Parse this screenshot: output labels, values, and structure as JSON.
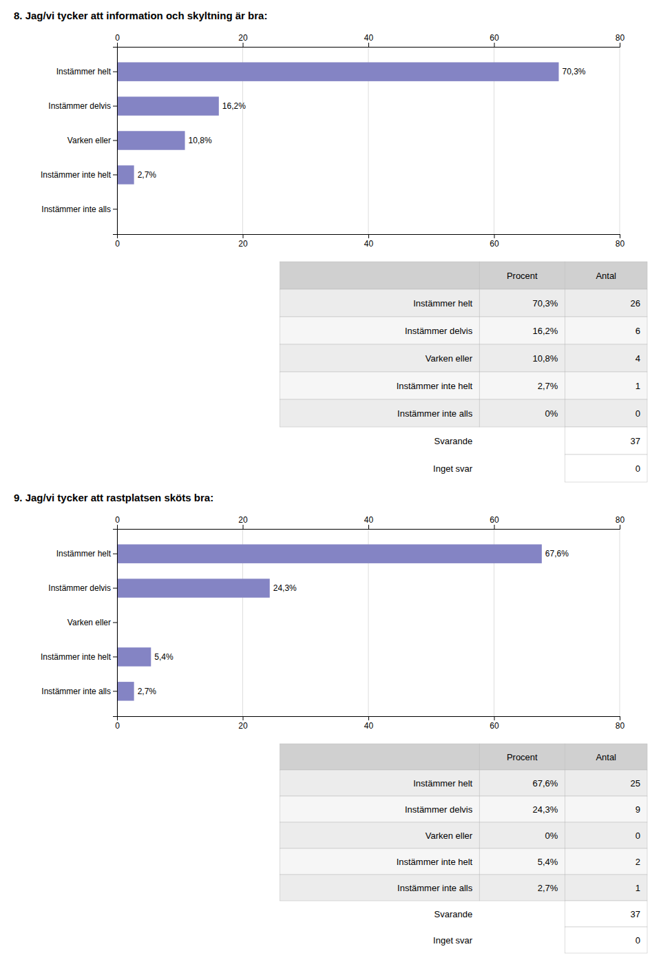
{
  "chart_data": [
    {
      "type": "bar",
      "orientation": "horizontal",
      "title": "8. Jag/vi tycker att information och skyltning är bra:",
      "categories": [
        "Instämmer helt",
        "Instämmer delvis",
        "Varken eller",
        "Instämmer inte helt",
        "Instämmer inte alls"
      ],
      "values": [
        70.3,
        16.2,
        10.8,
        2.7,
        0.0
      ],
      "value_labels": [
        "70,3%",
        "16,2%",
        "10,8%",
        "2,7%",
        null
      ],
      "data_labels": true,
      "color": "#8484C4",
      "xlim": [
        0,
        80
      ],
      "xticks": [
        0,
        20,
        40,
        60,
        80
      ],
      "grid": true
    },
    {
      "type": "table",
      "categories": [
        "Instämmer helt",
        "Instämmer delvis",
        "Varken eller",
        "Instämmer inte helt",
        "Instämmer inte alls"
      ],
      "series": [
        {
          "name": "Procent",
          "values": [
            70.3,
            16.2,
            10.8,
            2.7,
            0
          ],
          "value_labels": [
            "70,3%",
            "16,2%",
            "10,8%",
            "2,7%",
            "0%"
          ]
        },
        {
          "name": "Antal",
          "values": [
            26,
            6,
            4,
            1,
            0
          ]
        }
      ],
      "footer": [
        {
          "name": "Svarande",
          "value": 37
        },
        {
          "name": "Inget svar",
          "value": 0
        }
      ]
    },
    {
      "type": "bar",
      "orientation": "horizontal",
      "title": "9. Jag/vi tycker att rastplatsen sköts bra:",
      "categories": [
        "Instämmer helt",
        "Instämmer delvis",
        "Varken eller",
        "Instämmer inte helt",
        "Instämmer inte alls"
      ],
      "values": [
        67.6,
        24.3,
        0.0,
        5.4,
        2.7
      ],
      "value_labels": [
        "67,6%",
        "24,3%",
        null,
        "5,4%",
        "2,7%"
      ],
      "data_labels": true,
      "color": "#8484C4",
      "xlim": [
        0,
        80
      ],
      "xticks": [
        0,
        20,
        40,
        60,
        80
      ],
      "grid": true
    },
    {
      "type": "table",
      "categories": [
        "Instämmer helt",
        "Instämmer delvis",
        "Varken eller",
        "Instämmer inte helt",
        "Instämmer inte alls"
      ],
      "series": [
        {
          "name": "Procent",
          "values": [
            67.6,
            24.3,
            0,
            5.4,
            2.7
          ],
          "value_labels": [
            "67,6%",
            "24,3%",
            "0%",
            "5,4%",
            "2,7%"
          ]
        },
        {
          "name": "Antal",
          "values": [
            25,
            9,
            0,
            2,
            1
          ]
        }
      ],
      "footer": [
        {
          "name": "Svarande",
          "value": 37
        },
        {
          "name": "Inget svar",
          "value": 0
        }
      ]
    }
  ]
}
